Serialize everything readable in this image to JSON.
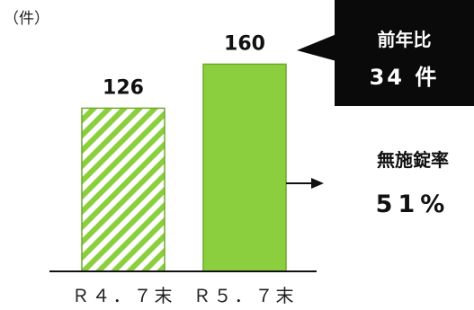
{
  "chart_data": {
    "type": "bar",
    "unit": "（件）",
    "categories": [
      "Ｒ４．７末",
      "Ｒ５．７末"
    ],
    "values": [
      126,
      160
    ],
    "ylim": [
      0,
      170
    ],
    "grid": false,
    "bar_styles": [
      "hatched",
      "solid"
    ],
    "colors": {
      "bar": "#8ccf3e",
      "bar_stroke": "#6aaa2a",
      "hatch_bg": "#ffffff"
    }
  },
  "callout": {
    "title": "前年比",
    "value": "34 件"
  },
  "rate": {
    "title": "無施錠率",
    "value": "51%"
  }
}
